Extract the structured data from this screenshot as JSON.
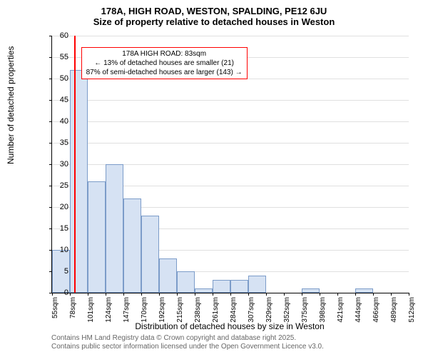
{
  "title_line1": "178A, HIGH ROAD, WESTON, SPALDING, PE12 6JU",
  "title_line2": "Size of property relative to detached houses in Weston",
  "ylabel": "Number of detached properties",
  "xlabel": "Distribution of detached houses by size in Weston",
  "footer_line1": "Contains HM Land Registry data © Crown copyright and database right 2025.",
  "footer_line2": "Contains public sector information licensed under the Open Government Licence v3.0.",
  "chart": {
    "type": "histogram",
    "ylim": [
      0,
      60
    ],
    "ytick_step": 5,
    "xcategories": [
      "55sqm",
      "78sqm",
      "101sqm",
      "124sqm",
      "147sqm",
      "170sqm",
      "192sqm",
      "215sqm",
      "238sqm",
      "261sqm",
      "284sqm",
      "307sqm",
      "329sqm",
      "352sqm",
      "375sqm",
      "398sqm",
      "421sqm",
      "444sqm",
      "466sqm",
      "489sqm",
      "512sqm"
    ],
    "values": [
      10,
      52,
      26,
      30,
      22,
      18,
      8,
      5,
      1,
      3,
      3,
      4,
      0,
      0,
      1,
      0,
      0,
      1,
      0,
      0
    ],
    "bar_fill": "#d6e2f3",
    "bar_border": "#7c9cc9",
    "background_color": "#ffffff",
    "grid_color": "#e0e0e0",
    "label_fontsize": 12,
    "tick_fontsize": 11,
    "title_fontsize": 13
  },
  "marker": {
    "position_sqm": 83,
    "line_color": "#ff0000",
    "box_border": "#ff0000",
    "annotation_line1": "178A HIGH ROAD: 83sqm",
    "annotation_line2": "← 13% of detached houses are smaller (21)",
    "annotation_line3": "87% of semi-detached houses are larger (143) →"
  }
}
